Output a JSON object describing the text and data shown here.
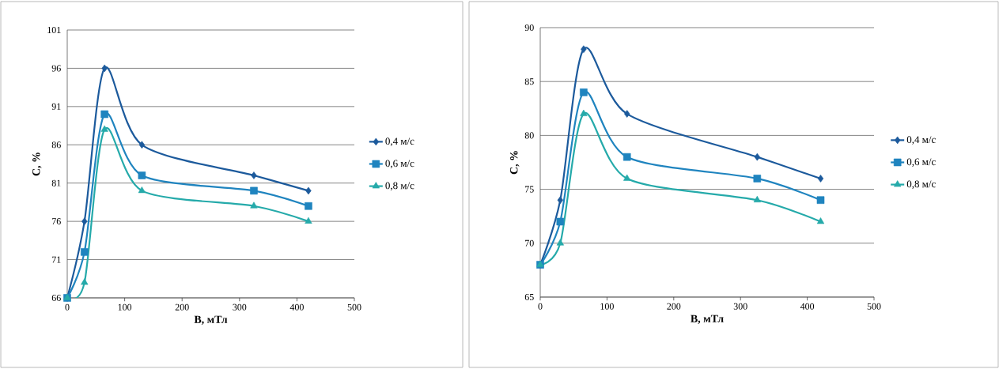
{
  "chart_data": [
    {
      "type": "line",
      "xlabel": "B, мТл",
      "ylabel": "C, %",
      "xlim": [
        0,
        500
      ],
      "xticks": [
        0,
        100,
        200,
        300,
        400,
        500
      ],
      "ylim": [
        66,
        101
      ],
      "yticks": [
        66,
        71,
        76,
        81,
        86,
        91,
        96,
        101
      ],
      "grid": "y",
      "legend": "right",
      "x": [
        0,
        30,
        65,
        130,
        325,
        420
      ],
      "series": [
        {
          "name": "0,4 м/с",
          "color": "#1c5a9c",
          "marker": "diamond",
          "values": [
            66,
            76,
            96,
            86,
            82,
            80
          ]
        },
        {
          "name": "0,6 м/с",
          "color": "#1f84bf",
          "marker": "square",
          "values": [
            66,
            72,
            90,
            82,
            80,
            78
          ]
        },
        {
          "name": "0,8 м/с",
          "color": "#25aaaa",
          "marker": "triangle",
          "values": [
            66,
            68,
            88,
            80,
            78,
            76
          ]
        }
      ]
    },
    {
      "type": "line",
      "xlabel": "B, мТл",
      "ylabel": "C, %",
      "xlim": [
        0,
        500
      ],
      "xticks": [
        0,
        100,
        200,
        300,
        400,
        500
      ],
      "ylim": [
        65,
        90
      ],
      "yticks": [
        65,
        70,
        75,
        80,
        85,
        90
      ],
      "grid": "y",
      "legend": "right",
      "x": [
        0,
        30,
        65,
        130,
        325,
        420
      ],
      "series": [
        {
          "name": "0,4 м/с",
          "color": "#1c5a9c",
          "marker": "diamond",
          "values": [
            68,
            74,
            88,
            82,
            78,
            76
          ]
        },
        {
          "name": "0,6 м/с",
          "color": "#1f84bf",
          "marker": "square",
          "values": [
            68,
            72,
            84,
            78,
            76,
            74
          ]
        },
        {
          "name": "0,8 м/с",
          "color": "#25aaaa",
          "marker": "triangle",
          "values": [
            68,
            70,
            82,
            76,
            74,
            72
          ]
        }
      ]
    }
  ]
}
